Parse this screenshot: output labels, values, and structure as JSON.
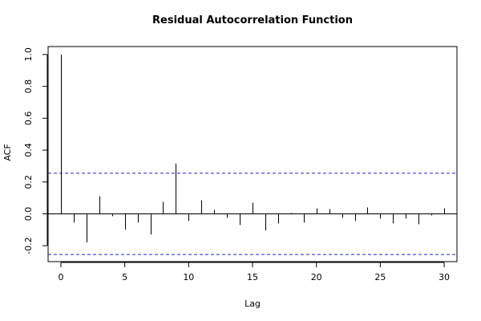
{
  "chart_data": {
    "type": "bar",
    "title": "Residual Autocorrelation Function",
    "xlabel": "Lag",
    "ylabel": "ACF",
    "xlim": [
      -1,
      31
    ],
    "ylim": [
      -0.3,
      1.05
    ],
    "x_ticks": [
      0,
      5,
      10,
      15,
      20,
      25,
      30
    ],
    "x_tick_labels": [
      "0",
      "5",
      "10",
      "15",
      "20",
      "25",
      "30"
    ],
    "y_ticks": [
      -0.2,
      0.0,
      0.2,
      0.4,
      0.6,
      0.8,
      1.0
    ],
    "y_tick_labels": [
      "-0.2",
      "0.0",
      "0.2",
      "0.4",
      "0.6",
      "0.8",
      "1.0"
    ],
    "lags": [
      0,
      1,
      2,
      3,
      4,
      5,
      6,
      7,
      8,
      9,
      10,
      11,
      12,
      13,
      14,
      15,
      16,
      17,
      18,
      19,
      20,
      21,
      22,
      23,
      24,
      25,
      26,
      27,
      28,
      29,
      30
    ],
    "acf": [
      1.0,
      -0.055,
      -0.18,
      0.11,
      -0.015,
      -0.1,
      -0.055,
      -0.13,
      0.075,
      0.315,
      -0.045,
      0.085,
      0.025,
      -0.025,
      -0.07,
      0.07,
      -0.105,
      -0.06,
      0.005,
      -0.055,
      0.035,
      0.03,
      -0.025,
      -0.045,
      0.04,
      -0.03,
      -0.06,
      -0.03,
      -0.065,
      -0.01,
      0.035
    ],
    "confidence_band": [
      -0.255,
      0.255
    ],
    "colors": {
      "bars": "#000000",
      "confidence_band": "#2222cc",
      "frame": "#000000"
    },
    "grid": false,
    "legend": "none"
  }
}
